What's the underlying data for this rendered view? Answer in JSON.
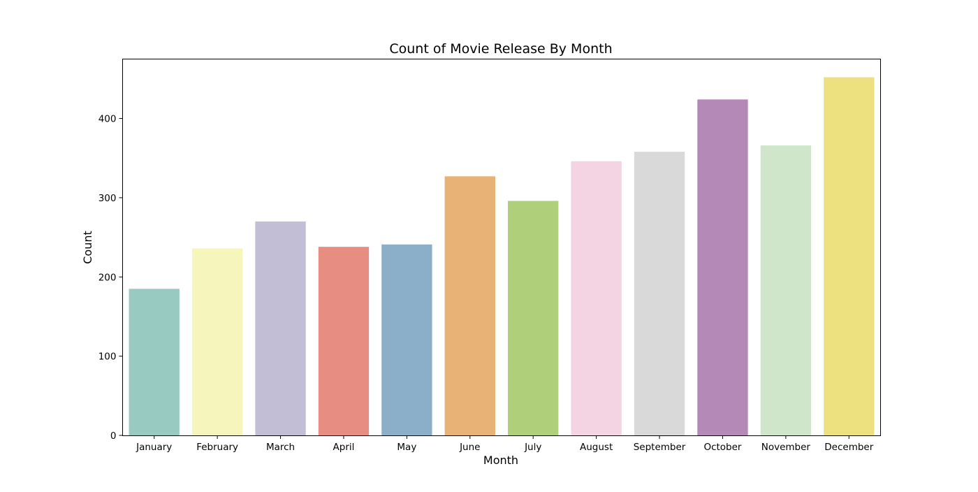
{
  "chart_data": {
    "type": "bar",
    "title": "Count of Movie Release By Month",
    "xlabel": "Month",
    "ylabel": "Count",
    "categories": [
      "January",
      "February",
      "March",
      "April",
      "May",
      "June",
      "July",
      "August",
      "September",
      "October",
      "November",
      "December"
    ],
    "values": [
      185,
      236,
      270,
      238,
      241,
      327,
      296,
      346,
      358,
      424,
      366,
      452
    ],
    "colors": [
      "#98CAC1",
      "#F6F6BC",
      "#C2BED6",
      "#E78D82",
      "#8CAFC9",
      "#E8B276",
      "#B0CF7A",
      "#F4D3E3",
      "#D9D9D9",
      "#B488B7",
      "#D0E6CA",
      "#ECE07F"
    ],
    "ylim": [
      0,
      475
    ],
    "yticks": [
      0,
      100,
      200,
      300,
      400
    ],
    "grid": false,
    "legend": "none"
  }
}
